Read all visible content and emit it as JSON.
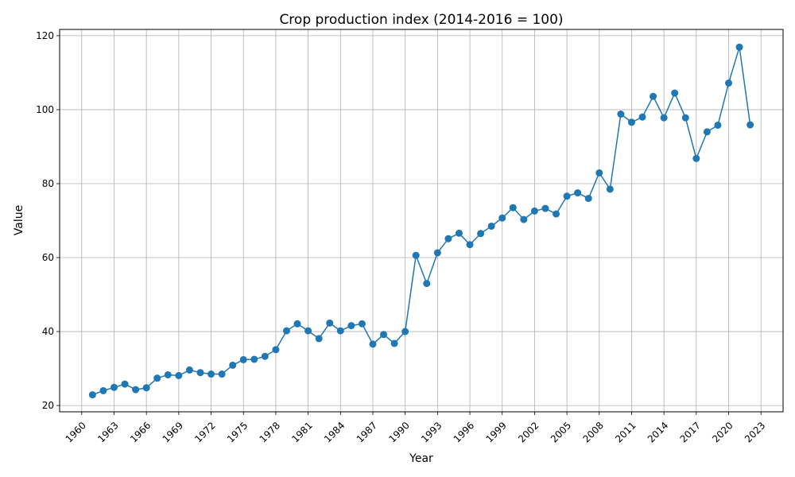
{
  "chart_data": {
    "type": "line",
    "title": "Crop production index (2014-2016 = 100)",
    "xlabel": "Year",
    "ylabel": "Value",
    "xlim": [
      1957.95,
      1963.0
    ],
    "ylim": [
      18.3,
      121.7
    ],
    "x_ticks": [
      "1960",
      "1963",
      "1966",
      "1969",
      "1972",
      "1975",
      "1978",
      "1981",
      "1984",
      "1987",
      "1990",
      "1993",
      "1996",
      "1999",
      "2002",
      "2005",
      "2008",
      "2011",
      "2014",
      "2017",
      "2020",
      "2023"
    ],
    "y_ticks": [
      "20",
      "40",
      "60",
      "80",
      "100",
      "120"
    ],
    "grid": true,
    "line_color": "#1f77b4",
    "marker": "circle",
    "series": [
      {
        "x": [
          1961,
          1962,
          1963,
          1964,
          1965,
          1966,
          1967,
          1968,
          1969,
          1970,
          1971,
          1972,
          1973,
          1974,
          1975,
          1976,
          1977,
          1978,
          1979,
          1980,
          1981,
          1982,
          1983,
          1984,
          1985,
          1986,
          1987,
          1988,
          1989,
          1990,
          1991,
          1992,
          1993,
          1994,
          1995,
          1996,
          1997,
          1998,
          1999,
          2000,
          2001,
          2002,
          2003,
          2004,
          2005,
          2006,
          2007,
          2008,
          2009,
          2010,
          2011,
          2012,
          2013,
          2014,
          2015,
          2016,
          2017,
          2018,
          2019,
          2020,
          2021,
          2022
        ],
        "values": [
          22.9,
          24.0,
          24.9,
          25.8,
          24.3,
          24.8,
          27.4,
          28.3,
          28.1,
          29.6,
          28.9,
          28.5,
          28.5,
          30.9,
          32.4,
          32.5,
          33.3,
          35.1,
          40.2,
          42.1,
          40.2,
          38.1,
          42.3,
          40.2,
          41.6,
          42.1,
          36.6,
          39.2,
          36.8,
          40.0,
          60.6,
          53.0,
          61.3,
          65.1,
          66.6,
          63.5,
          66.5,
          68.5,
          70.7,
          73.5,
          70.3,
          72.6,
          73.3,
          71.8,
          76.6,
          77.5,
          76.0,
          82.9,
          78.5,
          98.8,
          96.6,
          98.0,
          103.6,
          97.8,
          104.5,
          97.8,
          86.8,
          94.0,
          95.8,
          107.2,
          116.9,
          95.9
        ]
      }
    ]
  }
}
